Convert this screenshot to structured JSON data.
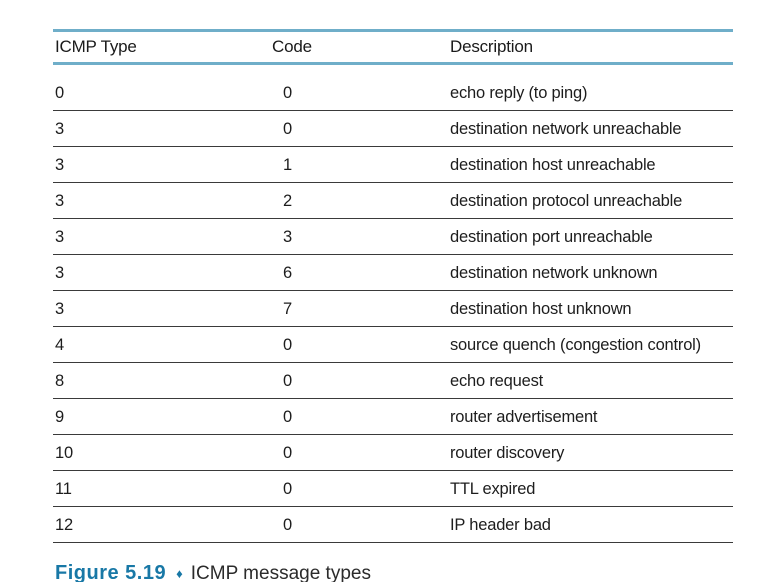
{
  "table": {
    "headers": [
      "ICMP Type",
      "Code",
      "Description"
    ],
    "rows": [
      [
        "0",
        "0",
        "echo reply (to ping)"
      ],
      [
        "3",
        "0",
        "destination network unreachable"
      ],
      [
        "3",
        "1",
        "destination host unreachable"
      ],
      [
        "3",
        "2",
        "destination protocol unreachable"
      ],
      [
        "3",
        "3",
        "destination port unreachable"
      ],
      [
        "3",
        "6",
        "destination network unknown"
      ],
      [
        "3",
        "7",
        "destination host unknown"
      ],
      [
        "4",
        "0",
        "source quench (congestion control)"
      ],
      [
        "8",
        "0",
        "echo request"
      ],
      [
        "9",
        "0",
        "router advertisement"
      ],
      [
        "10",
        "0",
        "router discovery"
      ],
      [
        "11",
        "0",
        "TTL expired"
      ],
      [
        "12",
        "0",
        "IP header bad"
      ]
    ]
  },
  "caption": {
    "figure_label": "Figure 5.19",
    "separator": "♦",
    "text": "ICMP message types"
  },
  "colors": {
    "rule_teal": "#6FAEC9",
    "row_line": "#3A3A3A",
    "accent_blue": "#1878A6",
    "text": "#1D1D1D"
  }
}
